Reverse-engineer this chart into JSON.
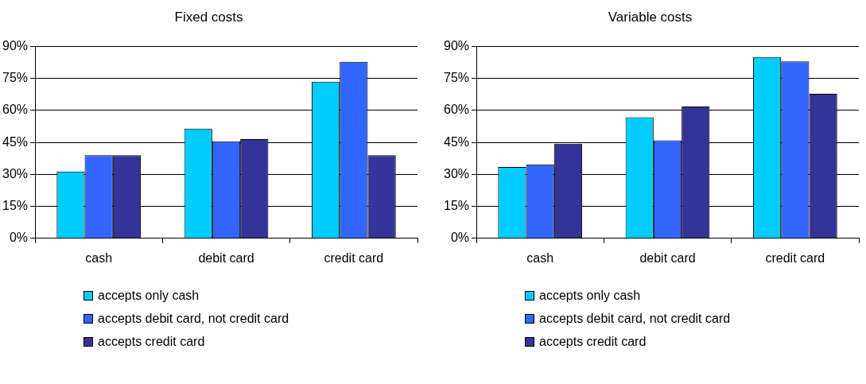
{
  "chart_data": [
    {
      "type": "bar",
      "title": "Fixed costs",
      "categories": [
        "cash",
        "debit card",
        "credit card"
      ],
      "ylim": [
        0,
        90
      ],
      "yticks": [
        {
          "value": 0,
          "label": "0%"
        },
        {
          "value": 15,
          "label": "15%"
        },
        {
          "value": 30,
          "label": "30%"
        },
        {
          "value": 45,
          "label": "45%"
        },
        {
          "value": 60,
          "label": "60%"
        },
        {
          "value": 75,
          "label": "75%"
        },
        {
          "value": 90,
          "label": "90%"
        }
      ],
      "grid": "y",
      "legend": "bottom",
      "series": [
        {
          "name": "accepts only cash",
          "color": "#00ccff",
          "values": [
            31.3,
            51.5,
            73.5
          ]
        },
        {
          "name": "accepts debit card, not credit card",
          "color": "#3366ff",
          "values": [
            39,
            45.5,
            82.8
          ]
        },
        {
          "name": "accepts credit card",
          "color": "#333399",
          "values": [
            39,
            46.5,
            39
          ]
        }
      ]
    },
    {
      "type": "bar",
      "title": "Variable costs",
      "categories": [
        "cash",
        "debit card",
        "credit card"
      ],
      "ylim": [
        0,
        90
      ],
      "yticks": [
        {
          "value": 0,
          "label": "0%"
        },
        {
          "value": 15,
          "label": "15%"
        },
        {
          "value": 30,
          "label": "30%"
        },
        {
          "value": 45,
          "label": "45%"
        },
        {
          "value": 60,
          "label": "60%"
        },
        {
          "value": 75,
          "label": "75%"
        },
        {
          "value": 90,
          "label": "90%"
        }
      ],
      "grid": "y",
      "legend": "bottom",
      "series": [
        {
          "name": "accepts only cash",
          "color": "#00ccff",
          "values": [
            33.5,
            56.8,
            85
          ]
        },
        {
          "name": "accepts debit card, not credit card",
          "color": "#3366ff",
          "values": [
            34.7,
            46,
            83
          ]
        },
        {
          "name": "accepts credit card",
          "color": "#333399",
          "values": [
            44.4,
            61.8,
            67.8
          ]
        }
      ]
    }
  ]
}
